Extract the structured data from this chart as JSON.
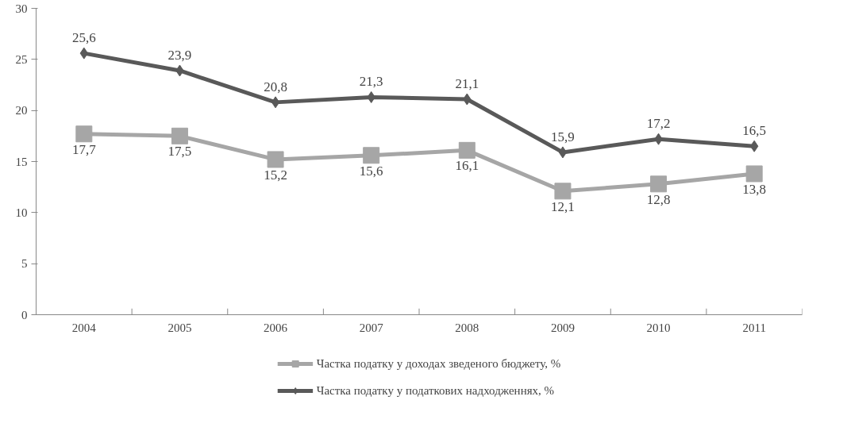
{
  "chart_data": {
    "type": "line",
    "categories": [
      "2004",
      "2005",
      "2006",
      "2007",
      "2008",
      "2009",
      "2010",
      "2011"
    ],
    "series": [
      {
        "name": "Частка податку у доходах зведеного бюджету, %",
        "color": "#a6a6a6",
        "marker": "square",
        "values": [
          17.7,
          17.5,
          15.2,
          15.6,
          16.1,
          12.1,
          12.8,
          13.8
        ],
        "value_labels": [
          "17,7",
          "17,5",
          "15,2",
          "15,6",
          "16,1",
          "12,1",
          "12,8",
          "13,8"
        ]
      },
      {
        "name": "Частка податку у податкових надходженнях, %",
        "color": "#595959",
        "marker": "diamond",
        "values": [
          25.6,
          23.9,
          20.8,
          21.3,
          21.1,
          15.9,
          17.2,
          16.5
        ],
        "value_labels": [
          "25,6",
          "23,9",
          "20,8",
          "21,3",
          "21,1",
          "15,9",
          "17,2",
          "16,5"
        ]
      }
    ],
    "ylim": [
      0,
      30
    ],
    "yticks": [
      0,
      5,
      10,
      15,
      20,
      25,
      30
    ],
    "grid": false,
    "legend": "bottom"
  }
}
